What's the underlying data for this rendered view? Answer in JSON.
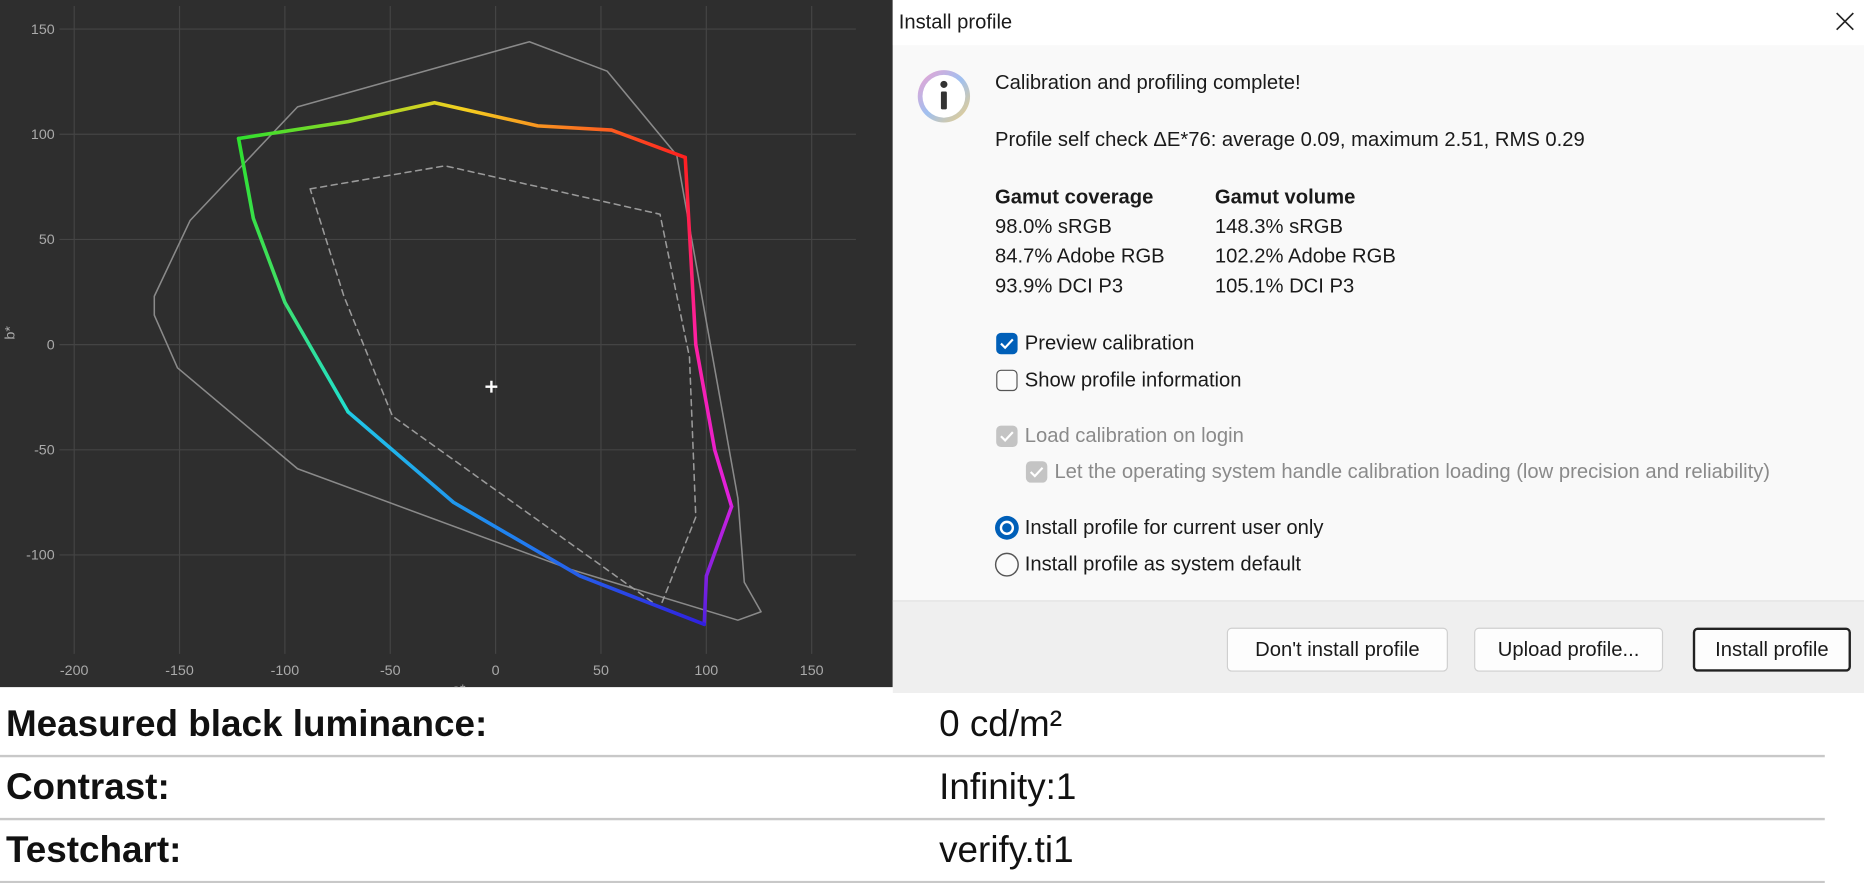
{
  "chart_data": {
    "type": "line",
    "xlabel": "a*",
    "ylabel": "b*",
    "xlim": [
      -207,
      171
    ],
    "ylim": [
      -147,
      161
    ],
    "xticks": [
      -200,
      -150,
      -100,
      -50,
      0,
      50,
      100,
      150
    ],
    "yticks": [
      -100,
      -50,
      0,
      50,
      100,
      150
    ],
    "grid": true,
    "series": [
      {
        "x": [
          -162,
          -145,
          -94,
          16,
          53,
          86,
          103,
          115,
          118,
          126,
          115,
          36,
          -94,
          -151,
          -162
        ],
        "values": [
          23,
          59,
          113,
          144,
          130,
          90,
          -6,
          -73,
          -113,
          -127,
          -131,
          -107,
          -59,
          -11,
          14
        ],
        "color": "#8a8a8a",
        "style": "solid",
        "closed": true
      },
      {
        "x": [
          -88,
          -24,
          78,
          92,
          95,
          78,
          -49,
          -72
        ],
        "values": [
          74,
          85,
          62,
          -6,
          -82,
          -125,
          -34,
          23
        ],
        "color": "#9a9a9a",
        "style": "dashed",
        "closed": true
      },
      {
        "x": [
          -122,
          -70,
          -29,
          20,
          55,
          90
        ],
        "values": [
          98,
          106,
          115,
          104,
          102,
          89
        ],
        "colors": [
          "#2ee02e",
          "#f5d020",
          "#ff2020"
        ],
        "style": "solid",
        "closed": false
      },
      {
        "x": [
          90,
          95,
          104,
          112
        ],
        "values": [
          89,
          0,
          -50,
          -77
        ],
        "colors": [
          "#ff2020",
          "#ff20a0",
          "#e020e0"
        ],
        "style": "solid",
        "closed": false
      },
      {
        "x": [
          112,
          100,
          99
        ],
        "values": [
          -77,
          -110,
          -133
        ],
        "colors": [
          "#d020e0",
          "#5020e0"
        ],
        "style": "solid",
        "closed": false
      },
      {
        "x": [
          99,
          40,
          -20,
          -70
        ],
        "values": [
          -133,
          -110,
          -75,
          -32
        ],
        "colors": [
          "#3020e0",
          "#2080f0",
          "#20c8e8"
        ],
        "style": "solid",
        "closed": false
      },
      {
        "x": [
          -70,
          -100,
          -115,
          -122
        ],
        "values": [
          -32,
          20,
          60,
          98
        ],
        "colors": [
          "#20e0d0",
          "#40e060",
          "#2ee02e"
        ],
        "style": "solid",
        "closed": false
      }
    ],
    "white_point": {
      "x": -2,
      "y": -20
    }
  },
  "dialog": {
    "title": "Install profile",
    "message": "Calibration and profiling complete!",
    "self_check": "Profile self check ΔE*76: average 0.09, maximum 2.51, RMS 0.29",
    "gamut_headers": [
      "Gamut coverage",
      "Gamut volume"
    ],
    "gamut_rows": [
      [
        "98.0% sRGB",
        "148.3% sRGB"
      ],
      [
        "84.7% Adobe RGB",
        "102.2% Adobe RGB"
      ],
      [
        "93.9% DCI P3",
        "105.1% DCI P3"
      ]
    ],
    "options": [
      "Preview calibration",
      "Show profile information",
      "Load calibration on login",
      "Let the operating system handle calibration loading (low precision and reliability)"
    ],
    "install_scope": [
      "Install profile for current user only",
      "Install profile as system default"
    ],
    "buttons": [
      "Don't install profile",
      "Upload profile...",
      "Install profile"
    ]
  },
  "summary_table": {
    "rows": [
      [
        "Measured black luminance:",
        "0 cd/m²"
      ],
      [
        "Contrast:",
        "Infinity:1"
      ],
      [
        "Testchart:",
        "verify.ti1"
      ]
    ]
  }
}
